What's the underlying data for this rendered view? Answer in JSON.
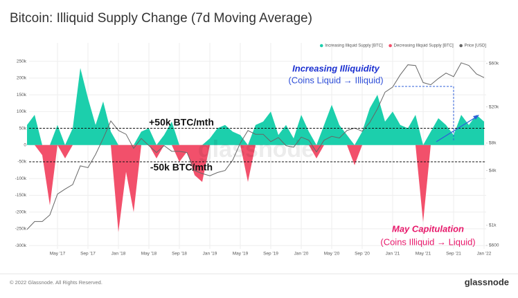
{
  "chart_data": {
    "type": "area",
    "title": "Bitcoin: Illiquid Supply Change (7d Moving Average)",
    "x": [
      "2017-01",
      "2017-02",
      "2017-03",
      "2017-04",
      "2017-05",
      "2017-06",
      "2017-07",
      "2017-08",
      "2017-09",
      "2017-10",
      "2017-11",
      "2017-12",
      "2018-01",
      "2018-02",
      "2018-03",
      "2018-04",
      "2018-05",
      "2018-06",
      "2018-07",
      "2018-08",
      "2018-09",
      "2018-10",
      "2018-11",
      "2018-12",
      "2019-01",
      "2019-02",
      "2019-03",
      "2019-04",
      "2019-05",
      "2019-06",
      "2019-07",
      "2019-08",
      "2019-09",
      "2019-10",
      "2019-11",
      "2019-12",
      "2020-01",
      "2020-02",
      "2020-03",
      "2020-04",
      "2020-05",
      "2020-06",
      "2020-07",
      "2020-08",
      "2020-09",
      "2020-10",
      "2020-11",
      "2020-12",
      "2021-01",
      "2021-02",
      "2021-03",
      "2021-04",
      "2021-05",
      "2021-06",
      "2021-07",
      "2021-08",
      "2021-09",
      "2021-10",
      "2021-11",
      "2021-12",
      "2022-01"
    ],
    "series": [
      {
        "name": "Increasing Illiquid Supply [BTC]",
        "color": "#1ccfac",
        "values": [
          60000,
          90000,
          0,
          0,
          60000,
          0,
          50000,
          230000,
          140000,
          60000,
          130000,
          40000,
          0,
          0,
          0,
          40000,
          50000,
          0,
          30000,
          70000,
          0,
          0,
          0,
          0,
          20000,
          50000,
          60000,
          40000,
          30000,
          0,
          60000,
          70000,
          100000,
          30000,
          60000,
          20000,
          90000,
          40000,
          0,
          60000,
          120000,
          60000,
          30000,
          0,
          40000,
          110000,
          150000,
          70000,
          100000,
          60000,
          50000,
          90000,
          0,
          40000,
          80000,
          60000,
          30000,
          90000,
          60000,
          90000,
          70000
        ]
      },
      {
        "name": "Decreasing Illiquid Supply [BTC]",
        "color": "#f2506b",
        "values": [
          0,
          0,
          -30000,
          -180000,
          0,
          -40000,
          0,
          0,
          0,
          0,
          0,
          0,
          -260000,
          -80000,
          -200000,
          0,
          0,
          -40000,
          0,
          0,
          -50000,
          -20000,
          -90000,
          -110000,
          0,
          0,
          0,
          0,
          0,
          -110000,
          0,
          0,
          0,
          0,
          0,
          0,
          0,
          0,
          -40000,
          0,
          0,
          0,
          0,
          -60000,
          0,
          0,
          0,
          0,
          0,
          0,
          0,
          0,
          -230000,
          0,
          0,
          0,
          0,
          0,
          0,
          0,
          0
        ]
      },
      {
        "name": "Price [USD]",
        "color": "#666666",
        "axis": "y2",
        "values": [
          900,
          1100,
          1100,
          1300,
          2200,
          2500,
          2800,
          4500,
          4300,
          6000,
          9000,
          14000,
          11000,
          10000,
          7000,
          9000,
          7500,
          6300,
          7500,
          6500,
          6500,
          6300,
          4000,
          3700,
          3500,
          3800,
          4000,
          5200,
          8000,
          11000,
          10000,
          10000,
          8300,
          9200,
          7500,
          7200,
          9300,
          8600,
          6400,
          8600,
          9500,
          9100,
          11000,
          11700,
          10800,
          13500,
          19000,
          29000,
          33000,
          45000,
          58000,
          57000,
          37000,
          35000,
          41000,
          47000,
          43000,
          61000,
          57000,
          46000,
          42000
        ]
      }
    ],
    "xlim": [
      "2017-01",
      "2022-01"
    ],
    "xticks": [
      {
        "value": "2017-05",
        "label": "May '17"
      },
      {
        "value": "2017-09",
        "label": "Sep '17"
      },
      {
        "value": "2018-01",
        "label": "Jan '18"
      },
      {
        "value": "2018-05",
        "label": "May '18"
      },
      {
        "value": "2018-09",
        "label": "Sep '18"
      },
      {
        "value": "2019-01",
        "label": "Jan '19"
      },
      {
        "value": "2019-05",
        "label": "May '19"
      },
      {
        "value": "2019-09",
        "label": "Sep '19"
      },
      {
        "value": "2020-01",
        "label": "Jan '20"
      },
      {
        "value": "2020-05",
        "label": "May '20"
      },
      {
        "value": "2020-09",
        "label": "Sep '20"
      },
      {
        "value": "2021-01",
        "label": "Jan '21"
      },
      {
        "value": "2021-05",
        "label": "May '21"
      },
      {
        "value": "2021-09",
        "label": "Sep '21"
      },
      {
        "value": "2022-01",
        "label": "Jan '22"
      }
    ],
    "ylim": [
      -310000,
      305000
    ],
    "yticks": [
      {
        "value": 250000,
        "label": "250k"
      },
      {
        "value": 200000,
        "label": "200k"
      },
      {
        "value": 150000,
        "label": "150k"
      },
      {
        "value": 100000,
        "label": "100k"
      },
      {
        "value": 50000,
        "label": "50k"
      },
      0,
      {
        "value": -50000,
        "label": "-50k"
      },
      {
        "value": -100000,
        "label": "-100k"
      },
      {
        "value": -150000,
        "label": "-150k"
      },
      {
        "value": -200000,
        "label": "-200k"
      },
      {
        "value": -250000,
        "label": "-250k"
      },
      {
        "value": -300000,
        "label": "-300k"
      }
    ],
    "y2lim": [
      550,
      101000
    ],
    "y2log": true,
    "y2ticks": [
      {
        "value": 60000,
        "label": "$60k"
      },
      {
        "value": 20000,
        "label": "$20k"
      },
      {
        "value": 8000,
        "label": "$8k"
      },
      {
        "value": 4000,
        "label": "$4k"
      },
      {
        "value": 1000,
        "label": "$1k"
      },
      {
        "value": 600,
        "label": "$600"
      }
    ],
    "grid": true,
    "legend": "top-right",
    "reference_lines": [
      {
        "value": 50000,
        "label": "+50k BTC/mth"
      },
      {
        "value": -50000,
        "label": "-50k BTC/mth"
      }
    ],
    "annotations": [
      "Increasing Illiquidity",
      "(Coins Liquid → Illiquid)",
      "May Capitulation",
      "(Coins Illiquid → Liquid)"
    ],
    "watermark": "glassnode"
  },
  "footer": {
    "copyright": "© 2022 Glassnode. All Rights Reserved.",
    "logo": "glassnode"
  }
}
